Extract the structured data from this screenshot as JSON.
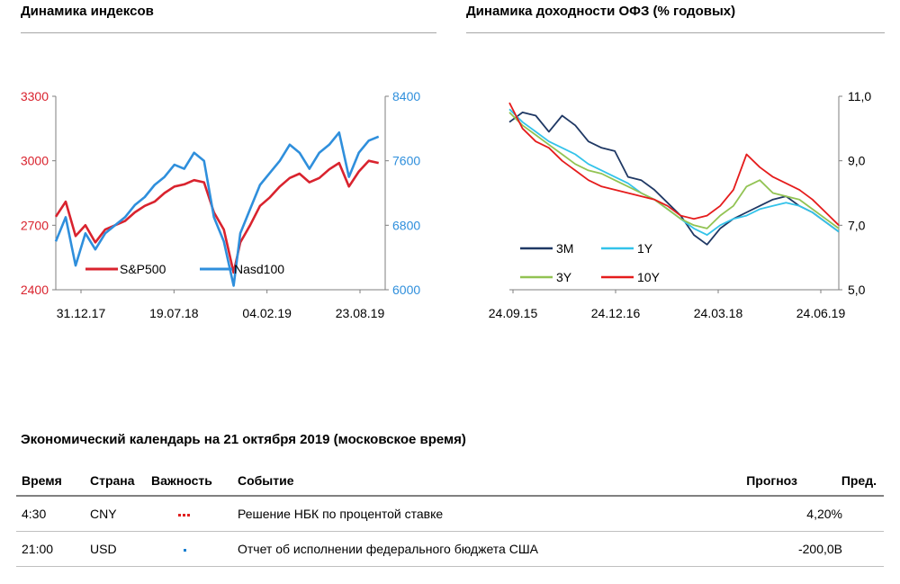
{
  "left_panel": {
    "title": "Динамика индексов"
  },
  "right_panel": {
    "title": "Динамика доходности ОФЗ (% годовых)"
  },
  "colors": {
    "sp500": "#d9232e",
    "nasd100": "#2f8fdc",
    "m3": "#1f3864",
    "y1": "#33c3ea",
    "y3": "#92c353",
    "y10": "#e51c1c",
    "left_axis": "#d9232e",
    "right_axis": "#2f8fdc",
    "ofz_axis": "#000000"
  },
  "chart_data": [
    {
      "type": "line",
      "title": "Динамика индексов",
      "x_ticks": [
        "31.12.17",
        "19.07.18",
        "04.02.19",
        "23.08.19"
      ],
      "y_left": {
        "ticks": [
          "2400",
          "2700",
          "3000",
          "3300"
        ],
        "ylim": [
          2400,
          3300
        ]
      },
      "y_right": {
        "ticks": [
          "6000",
          "6800",
          "7600",
          "8400"
        ],
        "ylim": [
          6000,
          8400
        ]
      },
      "xlim": [
        0,
        100
      ],
      "legend": "bottom-left",
      "series": [
        {
          "name": "S&P500",
          "axis": "left",
          "x": [
            0,
            3,
            6,
            9,
            12,
            15,
            18,
            21,
            24,
            27,
            30,
            33,
            36,
            39,
            42,
            45,
            48,
            51,
            54,
            56,
            59,
            62,
            65,
            68,
            71,
            74,
            77,
            80,
            83,
            86,
            89,
            92,
            95,
            98
          ],
          "values": [
            2740,
            2810,
            2650,
            2700,
            2620,
            2680,
            2700,
            2720,
            2760,
            2790,
            2810,
            2850,
            2880,
            2890,
            2910,
            2900,
            2760,
            2680,
            2480,
            2620,
            2700,
            2790,
            2830,
            2880,
            2920,
            2940,
            2900,
            2920,
            2960,
            2990,
            2880,
            2950,
            3000,
            2990
          ]
        },
        {
          "name": "Nasd100",
          "axis": "right",
          "x": [
            0,
            3,
            6,
            9,
            12,
            15,
            18,
            21,
            24,
            27,
            30,
            33,
            36,
            39,
            42,
            45,
            48,
            51,
            54,
            56,
            59,
            62,
            65,
            68,
            71,
            74,
            77,
            80,
            83,
            86,
            89,
            92,
            95,
            98
          ],
          "values": [
            6600,
            6900,
            6300,
            6700,
            6500,
            6700,
            6800,
            6900,
            7050,
            7150,
            7300,
            7400,
            7550,
            7500,
            7700,
            7600,
            6900,
            6600,
            6050,
            6700,
            7000,
            7300,
            7450,
            7600,
            7800,
            7700,
            7500,
            7700,
            7800,
            7950,
            7400,
            7700,
            7850,
            7900
          ]
        }
      ]
    },
    {
      "type": "line",
      "title": "Динамика доходности ОФЗ (% годовых)",
      "x_ticks": [
        "24.09.15",
        "24.12.16",
        "24.03.18",
        "24.06.19"
      ],
      "y_right": {
        "ticks": [
          "5,0",
          "7,0",
          "9,0",
          "11,0"
        ],
        "ylim": [
          5,
          11
        ]
      },
      "xlim": [
        0,
        100
      ],
      "legend": "bottom-left",
      "series": [
        {
          "name": "3M",
          "x": [
            0,
            4,
            8,
            12,
            16,
            20,
            24,
            28,
            32,
            36,
            40,
            44,
            48,
            52,
            56,
            60,
            64,
            68,
            72,
            76,
            80,
            84,
            88,
            92,
            96,
            100
          ],
          "values": [
            10.2,
            10.5,
            10.4,
            9.9,
            10.4,
            10.1,
            9.6,
            9.4,
            9.3,
            8.5,
            8.4,
            8.1,
            7.7,
            7.3,
            6.7,
            6.4,
            6.9,
            7.2,
            7.4,
            7.6,
            7.8,
            7.9,
            7.6,
            7.4,
            7.1,
            6.8
          ]
        },
        {
          "name": "1Y",
          "x": [
            0,
            4,
            8,
            12,
            16,
            20,
            24,
            28,
            32,
            36,
            40,
            44,
            48,
            52,
            56,
            60,
            64,
            68,
            72,
            76,
            80,
            84,
            88,
            92,
            96,
            100
          ],
          "values": [
            10.6,
            10.2,
            9.9,
            9.6,
            9.4,
            9.2,
            8.9,
            8.7,
            8.5,
            8.3,
            8.0,
            7.8,
            7.5,
            7.2,
            6.9,
            6.7,
            7.0,
            7.2,
            7.3,
            7.5,
            7.6,
            7.7,
            7.6,
            7.4,
            7.1,
            6.8
          ]
        },
        {
          "name": "3Y",
          "x": [
            0,
            4,
            8,
            12,
            16,
            20,
            24,
            28,
            32,
            36,
            40,
            44,
            48,
            52,
            56,
            60,
            64,
            68,
            72,
            76,
            80,
            84,
            88,
            92,
            96,
            100
          ],
          "values": [
            10.5,
            10.1,
            9.8,
            9.5,
            9.2,
            8.9,
            8.7,
            8.6,
            8.4,
            8.2,
            8.0,
            7.8,
            7.5,
            7.2,
            7.0,
            6.9,
            7.3,
            7.6,
            8.2,
            8.4,
            8.0,
            7.9,
            7.8,
            7.5,
            7.2,
            6.9
          ]
        },
        {
          "name": "10Y",
          "x": [
            0,
            4,
            8,
            12,
            16,
            20,
            24,
            28,
            32,
            36,
            40,
            44,
            48,
            52,
            56,
            60,
            64,
            68,
            72,
            76,
            80,
            84,
            88,
            92,
            96,
            100
          ],
          "values": [
            10.8,
            10.0,
            9.6,
            9.4,
            9.0,
            8.7,
            8.4,
            8.2,
            8.1,
            8.0,
            7.9,
            7.8,
            7.6,
            7.3,
            7.2,
            7.3,
            7.6,
            8.1,
            9.2,
            8.8,
            8.5,
            8.3,
            8.1,
            7.8,
            7.4,
            7.0
          ]
        }
      ]
    }
  ],
  "calendar": {
    "title": "Экономический календарь на 21 октября 2019 (московское время)",
    "headers": {
      "time": "Время",
      "country": "Страна",
      "importance": "Важность",
      "event": "Событие",
      "forecast": "Прогноз",
      "previous": "Пред."
    },
    "rows": [
      {
        "time": "4:30",
        "country": "CNY",
        "importance": 3,
        "event": "Решение НБК по процентой ставке",
        "forecast": "",
        "previous": "4,20%"
      },
      {
        "time": "21:00",
        "country": "USD",
        "importance": 1,
        "event": "Отчет об исполнении федерального бюджета США",
        "forecast": "",
        "previous": "-200,0B"
      }
    ]
  }
}
